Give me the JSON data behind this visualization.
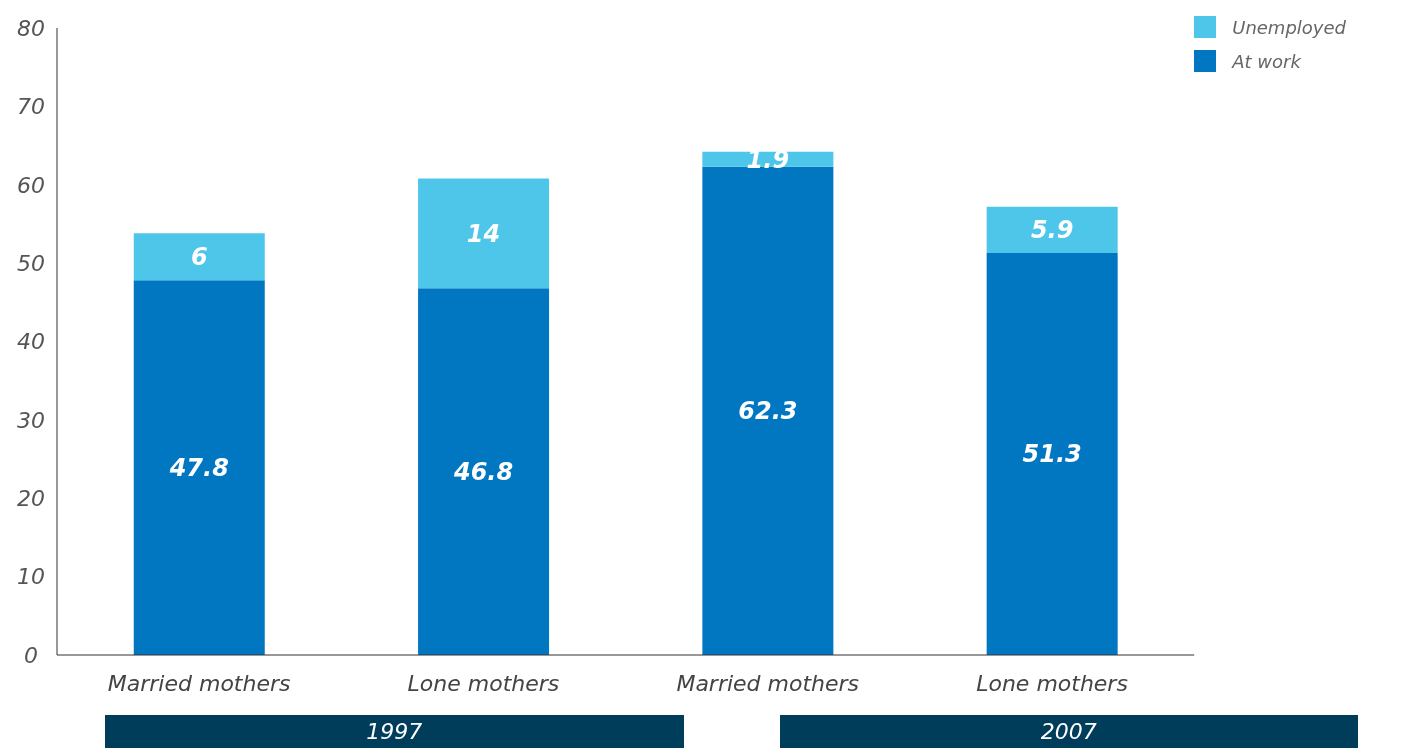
{
  "chart_data": {
    "type": "bar",
    "stacked": true,
    "categories": [
      "Married mothers",
      "Lone mothers",
      "Married mothers",
      "Lone mothers"
    ],
    "series": [
      {
        "name": "At work",
        "color": "#0277c1",
        "values": [
          47.8,
          46.8,
          62.3,
          51.3
        ]
      },
      {
        "name": "Unemployed",
        "color": "#4dc6ea",
        "values": [
          6,
          14,
          1.9,
          5.9
        ]
      }
    ],
    "ylim": [
      0,
      80
    ],
    "yticks": [
      0,
      10,
      20,
      30,
      40,
      50,
      60,
      70,
      80
    ],
    "grid": false,
    "legend": "top right",
    "data_labels": true,
    "annotations": [
      "1997",
      "2007"
    ]
  }
}
